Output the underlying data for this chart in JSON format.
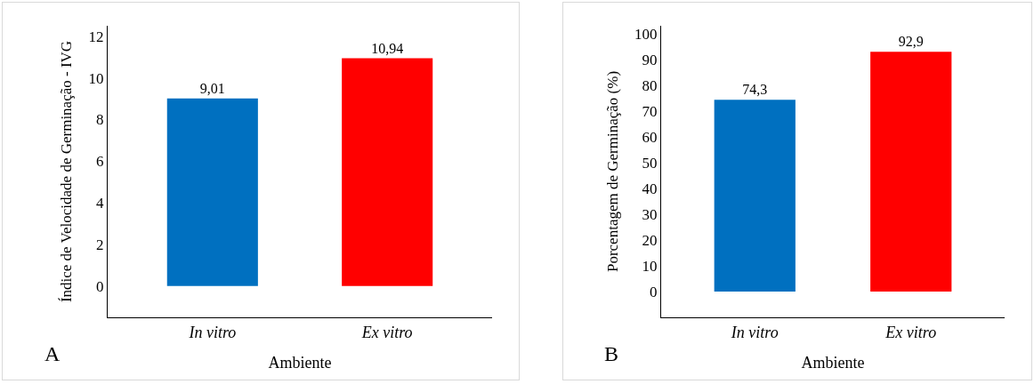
{
  "chart_data": [
    {
      "type": "bar",
      "categories": [
        "In vitro",
        "Ex vitro"
      ],
      "values": [
        9.01,
        10.94
      ],
      "colors": [
        "#0070c0",
        "#ff0000"
      ],
      "value_labels": [
        "9,01",
        "10,94"
      ],
      "ylim": [
        -1.5,
        12.5
      ],
      "yticks": [
        0,
        2,
        4,
        6,
        8,
        10,
        12
      ],
      "ylabel": "Índice de Velocidade de Germinação - IVG",
      "xlabel": "Ambiente",
      "annotations": [
        "A"
      ]
    },
    {
      "type": "bar",
      "categories": [
        "In vitro",
        "Ex vitro"
      ],
      "values": [
        74.3,
        92.9
      ],
      "colors": [
        "#0070c0",
        "#ff0000"
      ],
      "value_labels": [
        "74,3",
        "92,9"
      ],
      "ylim": [
        -10,
        103
      ],
      "yticks": [
        0,
        10,
        20,
        30,
        40,
        50,
        60,
        70,
        80,
        90,
        100
      ],
      "ylabel": "Porcentagem de Germinação (%)",
      "xlabel": "Ambiente",
      "annotations": [
        "B"
      ]
    }
  ]
}
